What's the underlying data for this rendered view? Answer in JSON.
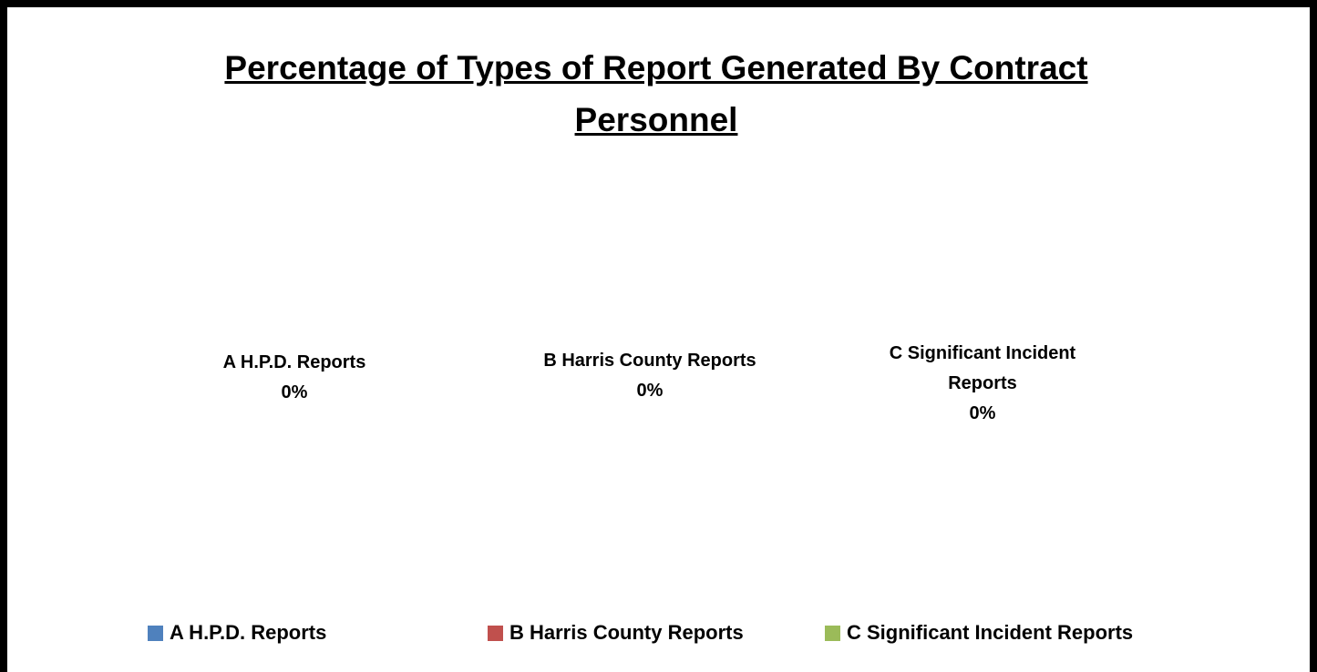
{
  "chart_data": {
    "type": "pie",
    "title": "Percentage of Types of Report Generated By Contract Personnel",
    "categories": [
      "A H.P.D. Reports",
      "B Harris County Reports",
      "C Significant Incident Reports"
    ],
    "values": [
      0,
      0,
      0
    ],
    "value_labels": [
      "0%",
      "0%",
      "0%"
    ],
    "colors": [
      "#4f81bd",
      "#c0504d",
      "#9bbb59"
    ],
    "legend": "bottom"
  }
}
